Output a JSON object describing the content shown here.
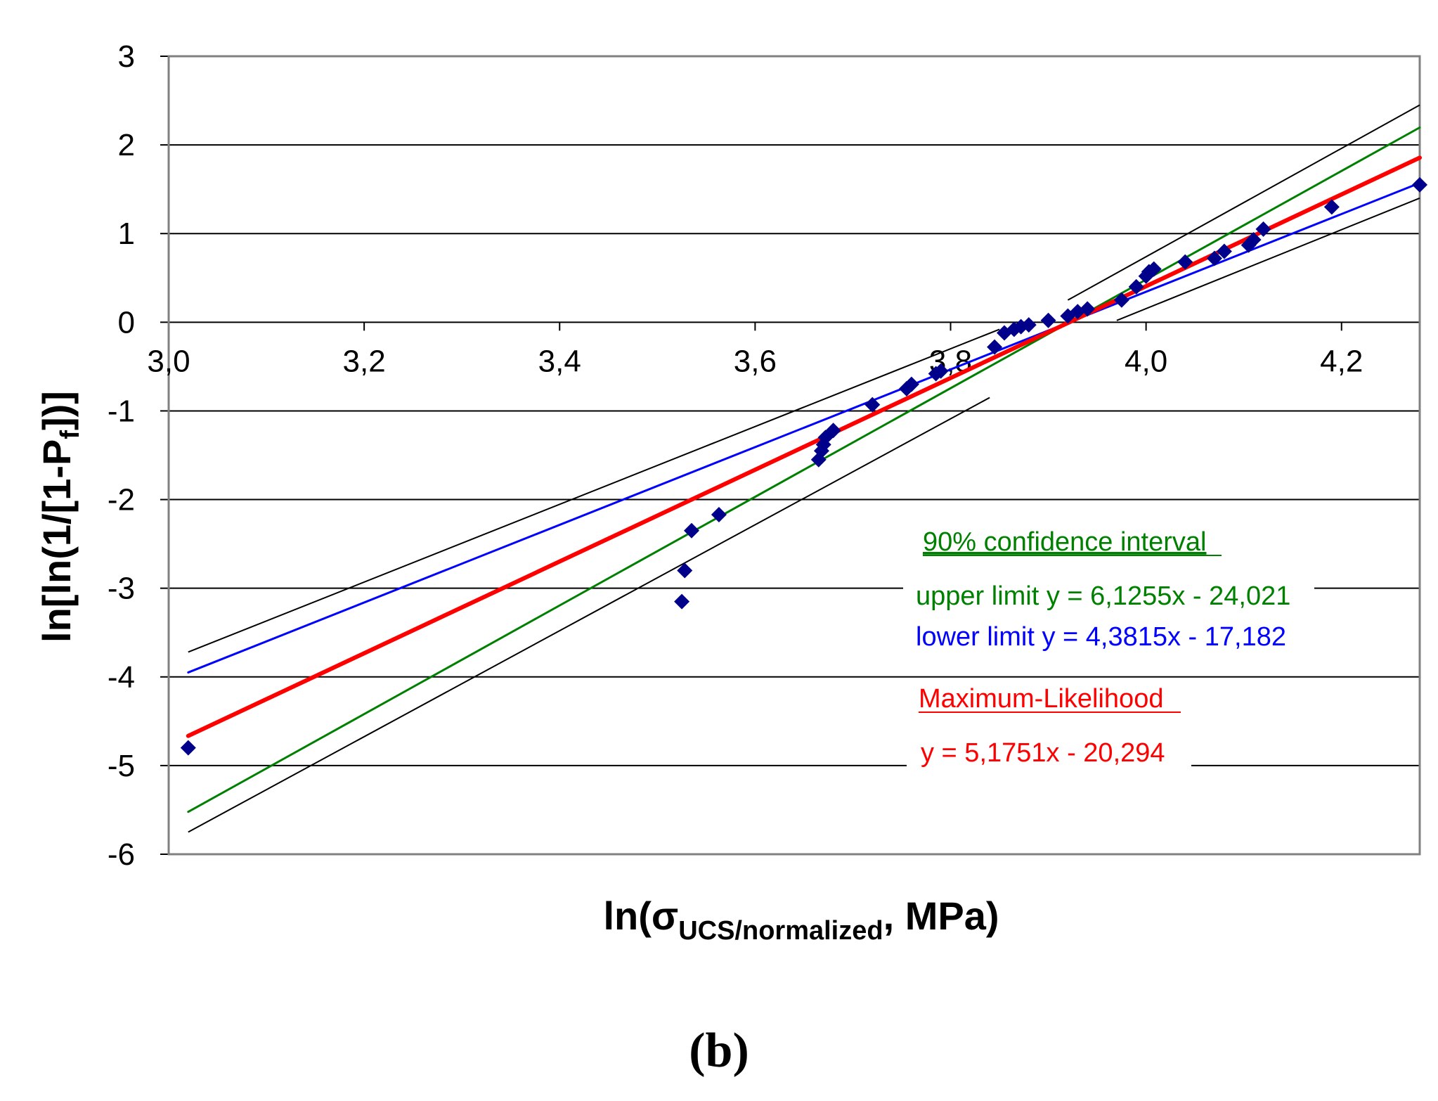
{
  "chart_data": {
    "type": "scatter",
    "title": "",
    "xlabel_main": "ln(σ",
    "xlabel_sub": "UCS/normalized",
    "xlabel_tail": ",  MPa)",
    "ylabel_main": "ln[ln(1/[1-P",
    "ylabel_sub": "f",
    "ylabel_tail": "])]",
    "xlim": [
      3.0,
      4.28
    ],
    "ylim": [
      -6,
      3
    ],
    "x_ticks": [
      3.0,
      3.2,
      3.4,
      3.6,
      3.8,
      4.0,
      4.2
    ],
    "x_tick_labels": [
      "3,0",
      "3,2",
      "3,4",
      "3,6",
      "3,8",
      "4,0",
      "4,2"
    ],
    "y_ticks": [
      3,
      2,
      1,
      0,
      -1,
      -2,
      -3,
      -4,
      -5,
      -6
    ],
    "y_tick_labels": [
      "3",
      "2",
      "1",
      "0",
      "-1",
      "-2",
      "-3",
      "-4",
      "-5",
      "-6"
    ],
    "grid": "horizontal",
    "points": {
      "name": "data",
      "color": "#00008b",
      "x": [
        3.02,
        3.525,
        3.528,
        3.535,
        3.563,
        3.665,
        3.668,
        3.67,
        3.672,
        3.68,
        3.72,
        3.755,
        3.76,
        3.785,
        3.79,
        3.845,
        3.855,
        3.865,
        3.872,
        3.88,
        3.9,
        3.92,
        3.93,
        3.94,
        3.975,
        3.99,
        4.0,
        4.003,
        4.008,
        4.04,
        4.07,
        4.08,
        4.105,
        4.11,
        4.12,
        4.19,
        4.28
      ],
      "y": [
        -4.8,
        -3.15,
        -2.8,
        -2.35,
        -2.17,
        -1.55,
        -1.45,
        -1.38,
        -1.3,
        -1.22,
        -0.93,
        -0.75,
        -0.7,
        -0.58,
        -0.55,
        -0.28,
        -0.12,
        -0.08,
        -0.05,
        -0.03,
        0.02,
        0.07,
        0.12,
        0.15,
        0.25,
        0.4,
        0.52,
        0.57,
        0.6,
        0.68,
        0.72,
        0.8,
        0.87,
        0.93,
        1.05,
        1.3,
        1.55
      ]
    },
    "lines": [
      {
        "name": "Maximum-Likelihood",
        "color": "#ff0000",
        "slope": 5.1751,
        "intercept": -20.294,
        "x_range": [
          3.02,
          4.28
        ],
        "width": 6
      },
      {
        "name": "upper limit",
        "color": "#008000",
        "slope": 6.1255,
        "intercept": -24.021,
        "x_range": [
          3.02,
          4.28
        ],
        "width": 3
      },
      {
        "name": "lower limit",
        "color": "#0000ff",
        "slope": 4.3815,
        "intercept": -17.182,
        "x_range": [
          3.02,
          4.28
        ],
        "width": 3
      }
    ],
    "confidence_band_curves": [
      {
        "name": "band-upper-left",
        "color": "#000000",
        "x": [
          3.02,
          3.85
        ],
        "y": [
          -3.72,
          -0.08
        ]
      },
      {
        "name": "band-upper-right",
        "color": "#000000",
        "x": [
          3.92,
          4.28
        ],
        "y": [
          0.25,
          2.45
        ]
      },
      {
        "name": "band-lower-left",
        "color": "#000000",
        "x": [
          3.02,
          3.84
        ],
        "y": [
          -5.75,
          -0.85
        ]
      },
      {
        "name": "band-lower-right",
        "color": "#000000",
        "x": [
          3.97,
          4.28
        ],
        "y": [
          0.02,
          1.4
        ]
      }
    ],
    "annotations": {
      "ci_title": "90% confidence interval",
      "upper_eq": "upper limit y = 6,1255x - 24,021",
      "lower_eq": "lower limit y = 4,3815x - 17,182",
      "ml_title": "Maximum-Likelihood",
      "ml_eq": "y = 5,1751x - 20,294"
    }
  },
  "caption": "(b)",
  "colors": {
    "ml": "#ff0000",
    "upper": "#008000",
    "lower": "#0000ff",
    "points": "#00008b",
    "grid": "#000000",
    "frame": "#808080"
  }
}
